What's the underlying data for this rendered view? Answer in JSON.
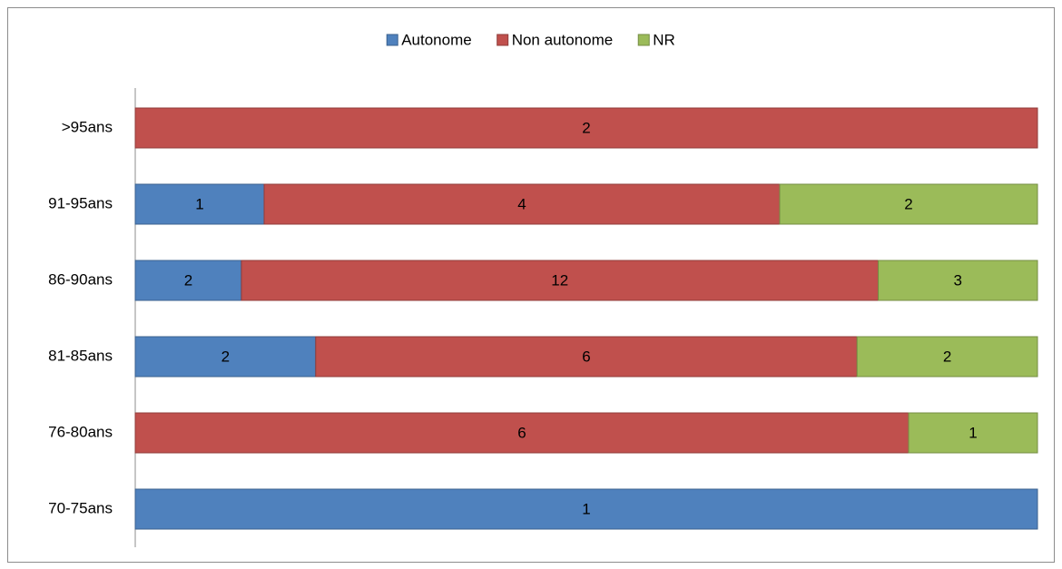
{
  "chart_data": {
    "type": "bar",
    "orientation": "horizontal",
    "stacking": "percent",
    "categories": [
      "70-75ans",
      "76-80ans",
      "81-85ans",
      "86-90ans",
      "91-95ans",
      ">95ans"
    ],
    "series": [
      {
        "name": "Autonome",
        "color": "#4f81bd",
        "values": [
          1,
          null,
          2,
          2,
          1,
          null
        ]
      },
      {
        "name": "Non autonome",
        "color": "#c0504d",
        "values": [
          null,
          6,
          6,
          12,
          4,
          2
        ]
      },
      {
        "name": "NR",
        "color": "#9bbb59",
        "values": [
          null,
          1,
          2,
          3,
          2,
          null
        ]
      }
    ],
    "legend": "top"
  }
}
